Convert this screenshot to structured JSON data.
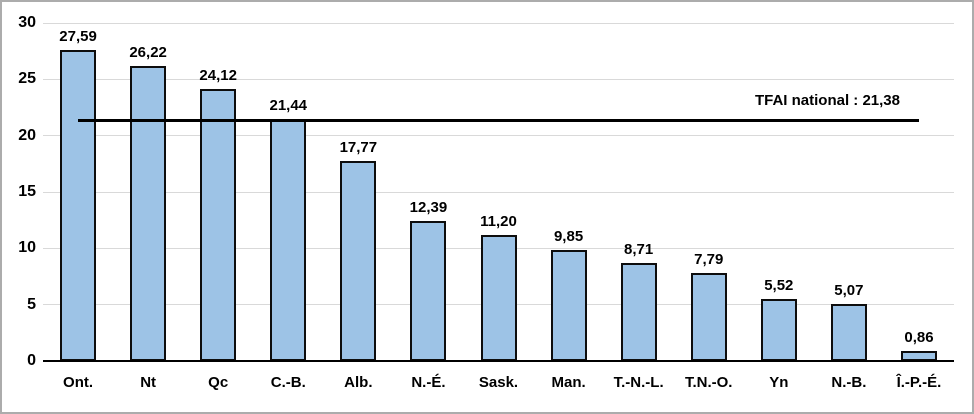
{
  "chart_data": {
    "type": "bar",
    "categories": [
      "Ont.",
      "Nt",
      "Qc",
      "C.-B.",
      "Alb.",
      "N.-É.",
      "Sask.",
      "Man.",
      "T.-N.-L.",
      "T.N.-O.",
      "Yn",
      "N.-B.",
      "Î.-P.-É."
    ],
    "values": [
      27.59,
      26.22,
      24.12,
      21.44,
      17.77,
      12.39,
      11.2,
      9.85,
      8.71,
      7.79,
      5.52,
      5.07,
      0.86
    ],
    "value_labels": [
      "27,59",
      "26,22",
      "24,12",
      "21,44",
      "17,77",
      "12,39",
      "11,20",
      "9,85",
      "8,71",
      "7,79",
      "5,52",
      "5,07",
      "0,86"
    ],
    "title": "",
    "xlabel": "",
    "ylabel": "",
    "ylim": [
      0,
      30
    ],
    "ytick_step": 5,
    "ytick_labels": [
      "0",
      "5",
      "10",
      "15",
      "20",
      "25",
      "30"
    ],
    "grid": true,
    "legend": false,
    "reference_line": {
      "value": 21.38,
      "label": "TFAI national : 21,38"
    },
    "colors": {
      "bar_fill": "#9DC3E6",
      "bar_border": "#0D0D0D",
      "gridline": "#D9D9D9",
      "axis": "#000000",
      "reference_line": "#000000",
      "text": "#000000",
      "frame_border": "#ACACAC",
      "background": "#FFFFFF"
    }
  }
}
